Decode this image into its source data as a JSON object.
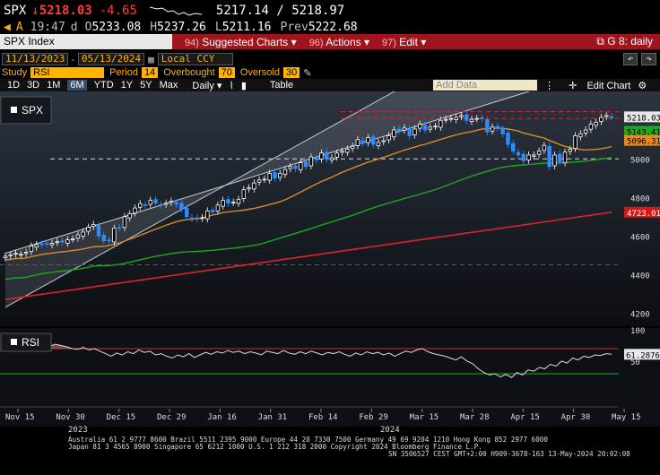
{
  "quote": {
    "ticker": "SPX",
    "arrow": "↓",
    "last": "5218.03",
    "change": "-4.65",
    "bid_ask": "5217.14 / 5218.97"
  },
  "quote2": {
    "flag": "A",
    "time": "19:47",
    "d_lbl": "d",
    "open_lbl": "O",
    "open": "5233.08",
    "high_lbl": "H",
    "high": "5237.26",
    "low_lbl": "L",
    "low": "5211.16",
    "prev_lbl": "Prev",
    "prev": "5222.68"
  },
  "toolbar": {
    "title": "SPX Index",
    "suggested_num": "94)",
    "suggested": "Suggested Charts",
    "actions_num": "96)",
    "actions": "Actions",
    "edit_num": "97)",
    "edit": "Edit",
    "right": "G 8: daily"
  },
  "dates": {
    "start": "11/13/2023",
    "end": "05/13/2024",
    "currency": "Local CCY"
  },
  "study": {
    "study_lbl": "Study",
    "study": "RSI",
    "period_lbl": "Period",
    "period": "14",
    "overbought_lbl": "Overbought",
    "overbought": "70",
    "oversold_lbl": "Oversold",
    "oversold": "30"
  },
  "tools": {
    "periods": [
      "1D",
      "3D",
      "1M",
      "6M",
      "YTD",
      "1Y",
      "5Y",
      "Max"
    ],
    "selected": "6M",
    "freq": "Daily",
    "table": "Table",
    "add_data": "Add Data",
    "edit_chart": "Edit Chart"
  },
  "chart_data": [
    {
      "type": "candlestick",
      "title": "SPX",
      "ylim": [
        4150,
        5350
      ],
      "yticks": [
        4200,
        4400,
        4600,
        4800,
        5000
      ],
      "price_labels": {
        "last": "5218.03",
        "ma1": "5143.41",
        "ma2": "5096.31",
        "ma3": "4723.01"
      },
      "lines": {
        "resistance": 5210,
        "support": 5000,
        "low_line": 4450
      },
      "close": [
        4495,
        4502,
        4510,
        4505,
        4515,
        4548,
        4555,
        4558,
        4560,
        4562,
        4570,
        4568,
        4580,
        4585,
        4605,
        4620,
        4645,
        4660,
        4600,
        4575,
        4575,
        4640,
        4640,
        4700,
        4715,
        4745,
        4768,
        4760,
        4785,
        4770,
        4760,
        4770,
        4780,
        4765,
        4740,
        4700,
        4690,
        4688,
        4695,
        4730,
        4725,
        4760,
        4785,
        4770,
        4775,
        4790,
        4840,
        4850,
        4875,
        4890,
        4895,
        4925,
        4900,
        4925,
        4945,
        4960,
        4950,
        4980,
        4960,
        5010,
        4995,
        5030,
        5000,
        5005,
        5030,
        5040,
        5050,
        5065,
        5100,
        5080,
        5110,
        5075,
        5085,
        5095,
        5120,
        5150,
        5145,
        5160,
        5120,
        5155,
        5180,
        5150,
        5165,
        5170,
        5200,
        5205,
        5210,
        5215,
        5225,
        5200,
        5205,
        5210,
        5210,
        5140,
        5165,
        5160,
        5130,
        5075,
        5040,
        5020,
        4990,
        5020,
        5020,
        5040,
        5070,
        4960,
        5020,
        4985,
        5035,
        5050,
        5120,
        5130,
        5150,
        5180,
        5190,
        5215,
        5225,
        5218
      ]
    },
    {
      "type": "line",
      "title": "RSI",
      "ylim": [
        0,
        100
      ],
      "yticks": [
        50,
        100
      ],
      "last": "61.2876",
      "overbought": 70,
      "oversold": 30,
      "values": [
        72,
        73,
        70,
        74,
        72,
        75,
        71,
        76,
        74,
        77,
        75,
        73,
        70,
        69,
        72,
        68,
        70,
        66,
        62,
        58,
        63,
        60,
        65,
        62,
        68,
        64,
        66,
        60,
        62,
        58,
        55,
        60,
        57,
        62,
        56,
        60,
        64,
        61,
        65,
        63,
        67,
        64,
        66,
        62,
        65,
        63,
        60,
        66,
        64,
        62,
        67,
        63,
        61,
        65,
        62,
        66,
        63,
        60,
        64,
        62,
        65,
        61,
        58,
        63,
        60,
        65,
        62,
        64,
        60,
        63,
        58,
        62,
        66,
        64,
        68,
        70,
        65,
        62,
        60,
        58,
        55,
        52,
        57,
        50,
        46,
        38,
        32,
        28,
        30,
        25,
        29,
        24,
        32,
        28,
        36,
        34,
        40,
        38,
        45,
        42,
        50,
        47,
        55,
        52,
        58,
        56,
        60,
        59,
        62,
        61
      ]
    }
  ],
  "x_axis": {
    "labels": [
      "Nov 15",
      "Nov 30",
      "Dec 15",
      "Dec 29",
      "Jan 16",
      "Jan 31",
      "Feb 14",
      "Feb 29",
      "Mar 15",
      "Mar 28",
      "Apr 15",
      "Apr 30",
      "May 15"
    ],
    "years": [
      "2023",
      "2024"
    ]
  },
  "footer": {
    "line1": "Australia 61 2 9777 8600 Brazil 5511 2395 9000 Europe 44 20 7330 7500 Germany 49 69 9204 1210 Hong Kong 852 2977 6000",
    "line2": "Japan 81 3 4565 8900       Singapore 65 6212 1000       U.S. 1 212 318 2000       Copyright 2024 Bloomberg Finance L.P.",
    "line3": "SN 3506527 CEST GMT+2:00 H909-3678-163 13-May-2024 20:02:08"
  },
  "colors": {
    "red": "#ff3b3b",
    "amber": "#ffb400",
    "ma_green": "#1fa81f",
    "ma_orange": "#d98a2a",
    "ma_red": "#e0202a",
    "up": "#ffffff",
    "down": "#2f8cff"
  }
}
